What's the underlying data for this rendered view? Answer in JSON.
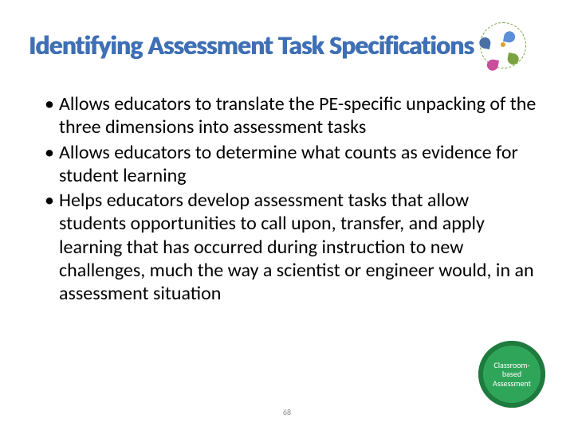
{
  "title": "Identifying Assessment Task Specifications",
  "title_color": "#3f6fb5",
  "bullets": [
    "Allows educators to translate the PE-specific unpacking of the three dimensions into assessment tasks",
    "Allows educators to determine what counts as evidence for student learning",
    "Helps educators develop assessment tasks that allow students opportunities to call upon, transfer, and apply learning that has occurred during instruction to new challenges, much the way a scientist or engineer would, in an assessment situation"
  ],
  "badge": {
    "line1": "Classroom-",
    "line2": "based",
    "line3": "Assessment",
    "bg_color": "#2fa55a",
    "text_color": "#ffffff"
  },
  "page_number": "68",
  "logo_colors": {
    "ring": "#7aa23f",
    "petal1": "#5b8fd6",
    "petal2": "#7aa23f",
    "petal3": "#c94f9a",
    "petal4": "#4a6fa5",
    "dot": "#e0a030"
  },
  "body_fontsize": 24,
  "title_fontsize": 33,
  "background_color": "#ffffff"
}
